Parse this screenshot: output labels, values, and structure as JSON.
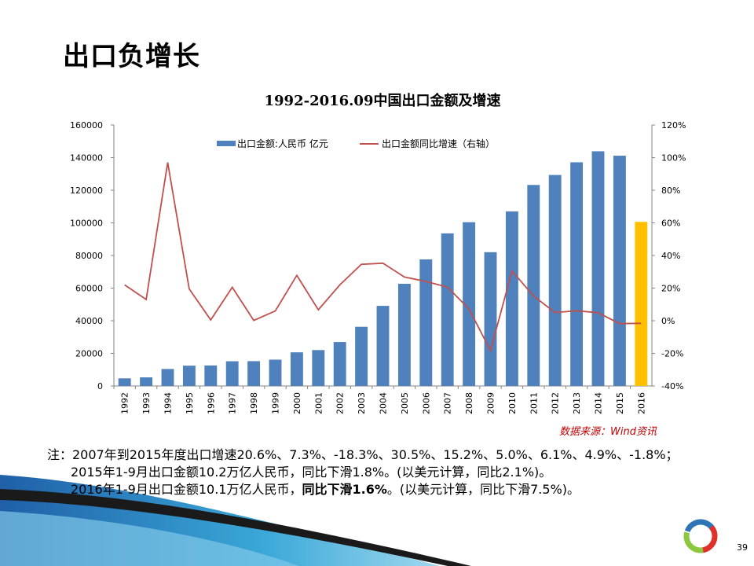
{
  "slide": {
    "title": "出口负增长",
    "page_number": "39",
    "source": "数据来源：Wind资讯",
    "notes": {
      "line1": "注：2007年到2015年度出口增速20.6%、7.3%、-18.3%、30.5%、15.2%、5.0%、6.1%、4.9%、-1.8%；",
      "line2": "2015年1-9月出口金额10.2万亿人民币，同比下滑1.8%。(以美元计算，同比2.1%)。",
      "line3_a": "2016年1-9月出口金额10.1万亿人民币，",
      "line3_b": "同比下滑1.6%",
      "line3_c": "。(以美元计算，同比下滑7.5%)。"
    }
  },
  "colors": {
    "bar": "#4f81bd",
    "bar_highlight": "#ffc000",
    "line": "#c0504d",
    "source_text": "#c00000"
  },
  "chart_data": {
    "type": "bar",
    "title": "1992-2016.09中国出口金额及增速",
    "categories": [
      "1992",
      "1993",
      "1994",
      "1995",
      "1996",
      "1997",
      "1998",
      "1999",
      "2000",
      "2001",
      "2002",
      "2003",
      "2004",
      "2005",
      "2006",
      "2007",
      "2008",
      "2009",
      "2010",
      "2011",
      "2012",
      "2013",
      "2014",
      "2015",
      "2016"
    ],
    "series": [
      {
        "name": "出口金额:人民币 亿元",
        "type": "bar",
        "axis": "left",
        "values": [
          4676,
          5285,
          10422,
          12452,
          12576,
          15161,
          15224,
          16160,
          20634,
          22024,
          26948,
          36288,
          49103,
          62648,
          77598,
          93563,
          100395,
          82030,
          107023,
          123241,
          129359,
          137131,
          143884,
          141167,
          100600
        ],
        "highlight_index": 24
      },
      {
        "name": "出口金额同比增速（右轴）",
        "type": "line",
        "axis": "right",
        "values": [
          22,
          13,
          97,
          19.5,
          0.5,
          20.5,
          0.2,
          6,
          27.8,
          6.7,
          22,
          34.6,
          35.3,
          26.8,
          24.1,
          20.6,
          7.3,
          -18.3,
          30.5,
          15.2,
          5.0,
          6.1,
          4.9,
          -1.8,
          -1.6
        ]
      }
    ],
    "y_left": {
      "min": 0,
      "max": 160000,
      "ticks": [
        0,
        20000,
        40000,
        60000,
        80000,
        100000,
        120000,
        140000,
        160000
      ]
    },
    "y_right": {
      "min": -40,
      "max": 120,
      "ticks": [
        "-40%",
        "-20%",
        "0%",
        "20%",
        "40%",
        "60%",
        "80%",
        "100%",
        "120%"
      ]
    },
    "legend": "top",
    "grid": false
  }
}
